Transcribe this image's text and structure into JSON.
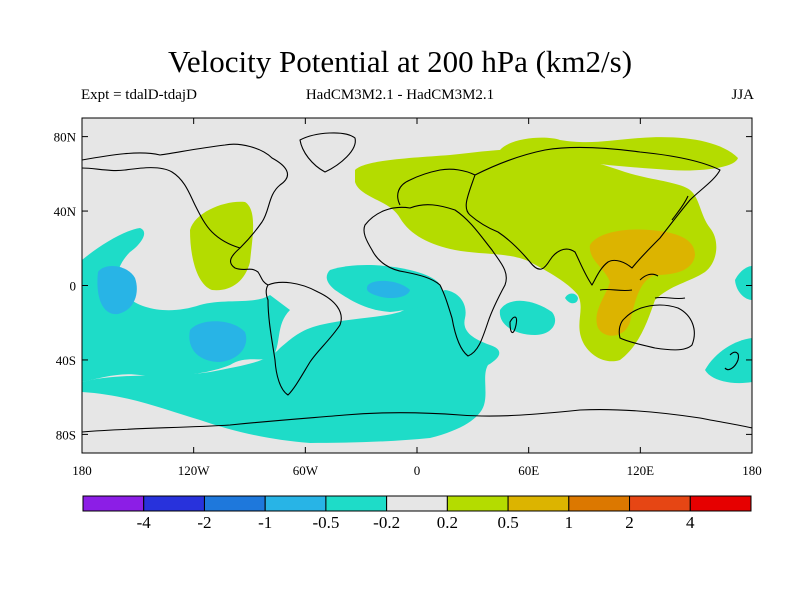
{
  "title": "Velocity Potential at 200 hPa (km2/s)",
  "subtitle_left": "Expt = tdalD-tdajD",
  "subtitle_center": "HadCM3M2.1 - HadCM3M2.1",
  "subtitle_right": "JJA",
  "map": {
    "projection": "cylindrical",
    "lon_range": [
      -180,
      180
    ],
    "lat_range": [
      -90,
      90
    ],
    "lat_ticks": [
      {
        "value": 80,
        "label": "80N"
      },
      {
        "value": 40,
        "label": "40N"
      },
      {
        "value": 0,
        "label": "0"
      },
      {
        "value": -40,
        "label": "40S"
      },
      {
        "value": -80,
        "label": "80S"
      }
    ],
    "lon_ticks": [
      {
        "value": -180,
        "label": "180"
      },
      {
        "value": -120,
        "label": "120W"
      },
      {
        "value": -60,
        "label": "60W"
      },
      {
        "value": 0,
        "label": "0"
      },
      {
        "value": 60,
        "label": "60E"
      },
      {
        "value": 120,
        "label": "120E"
      },
      {
        "value": 180,
        "label": "180"
      }
    ],
    "background_color": "#e6e6e6",
    "coastline_color": "#000000"
  },
  "colorbar": {
    "colors": [
      "#8c1ee6",
      "#2832dc",
      "#1e78dc",
      "#28b4e6",
      "#1edcc8",
      "#e6e6e6",
      "#b4dc00",
      "#dcb400",
      "#dc7800",
      "#e64614",
      "#e60000"
    ],
    "labels": [
      "-4",
      "-2",
      "-1",
      "-0.5",
      "-0.2",
      "0.2",
      "0.5",
      "1",
      "2",
      "4"
    ]
  },
  "chart_data": {
    "type": "map_contour",
    "title": "Velocity Potential at 200 hPa (km2/s)",
    "variable": "velocity potential difference at 200 hPa",
    "units": "km2/s",
    "season": "JJA",
    "contour_levels": [
      -4,
      -2,
      -1,
      -0.5,
      -0.2,
      0.2,
      0.5,
      1,
      2,
      4
    ],
    "regions": [
      {
        "name": "Eurasia-Africa-Indian Ocean positive region",
        "range": "0.5 to 1",
        "lon": [
          -20,
          155
        ],
        "lat": [
          -35,
          75
        ]
      },
      {
        "name": "Arctic positive region",
        "range": "0.5 to 1",
        "lon": [
          35,
          130
        ],
        "lat": [
          60,
          78
        ]
      },
      {
        "name": "Central America positive region",
        "range": "0.5 to 1",
        "lon": [
          -128,
          -103
        ],
        "lat": [
          0,
          45
        ]
      },
      {
        "name": "Western Pacific / Maritime Continent maximum",
        "range": "1 to 2",
        "lon": [
          95,
          145
        ],
        "lat": [
          -25,
          30
        ]
      },
      {
        "name": "Tropical Pacific negative region",
        "range": "-1 to -0.5",
        "lon": [
          -180,
          -130
        ],
        "lat": [
          -35,
          25
        ]
      },
      {
        "name": "Southern Ocean / South Pacific / South Atlantic negative region",
        "range": "-1 to -0.5",
        "lon": [
          -170,
          30
        ],
        "lat": [
          -85,
          10
        ]
      },
      {
        "name": "South Indian Ocean negative patch",
        "range": "-0.5 to -0.2",
        "lon": [
          45,
          72
        ],
        "lat": [
          -28,
          -5
        ]
      },
      {
        "name": "Southwest Pacific negative patch",
        "range": "-0.5 to -0.2",
        "lon": [
          150,
          180
        ],
        "lat": [
          -55,
          -25
        ]
      }
    ]
  }
}
